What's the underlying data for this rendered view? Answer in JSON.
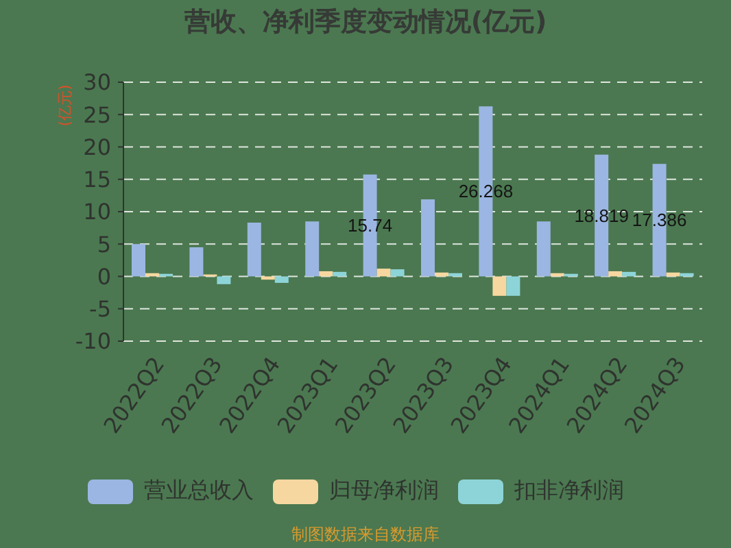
{
  "chart_data": {
    "type": "bar",
    "title": "营收、净利季度变动情况(亿元)",
    "ylabel": "(亿元)",
    "categories": [
      "2022Q2",
      "2022Q3",
      "2022Q4",
      "2023Q1",
      "2023Q2",
      "2023Q3",
      "2023Q4",
      "2024Q1",
      "2024Q2",
      "2024Q3"
    ],
    "series": [
      {
        "name": "营业总收入",
        "color": "#9bb6e2",
        "values": [
          5.0,
          4.5,
          8.3,
          8.5,
          15.74,
          11.9,
          26.268,
          8.5,
          18.819,
          17.386
        ],
        "value_labels": [
          null,
          null,
          null,
          null,
          "15.74",
          null,
          "26.268",
          null,
          "18.819",
          "17.386"
        ]
      },
      {
        "name": "归母净利润",
        "color": "#f7d7a0",
        "values": [
          0.5,
          0.3,
          -0.5,
          0.8,
          1.2,
          0.6,
          -3.0,
          0.5,
          0.8,
          0.6
        ]
      },
      {
        "name": "扣非净利润",
        "color": "#8dd4d8",
        "values": [
          0.4,
          -1.2,
          -1.0,
          0.7,
          1.1,
          0.5,
          -3.0,
          0.4,
          0.7,
          0.5
        ]
      }
    ],
    "ylim": [
      -10,
      30
    ],
    "yticks": [
      -10,
      -5,
      0,
      5,
      10,
      15,
      20,
      25,
      30
    ],
    "grid": "y",
    "legend": "bottom",
    "annotations": [
      "制图数据来自数据库"
    ]
  }
}
